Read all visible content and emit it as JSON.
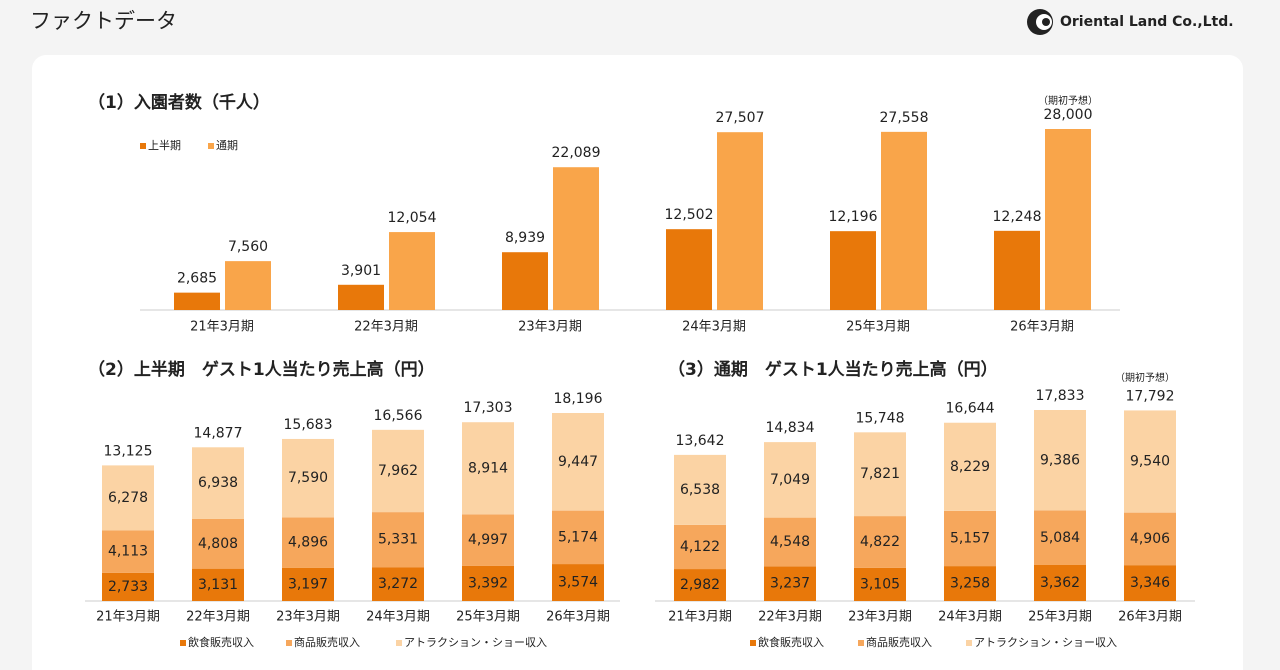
{
  "header": {
    "title": "ファクトデータ",
    "logo": "Oriental Land Co.,Ltd."
  },
  "chart_data": [
    {
      "type": "bar",
      "title": "（1）入園者数（千人）",
      "annotation": "（期初予想）",
      "categories": [
        "21年3月期",
        "22年3月期",
        "23年3月期",
        "24年3月期",
        "25年3月期",
        "26年3月期"
      ],
      "series": [
        {
          "name": "上半期",
          "color": "#e8780a",
          "values": [
            2685,
            3901,
            8939,
            12502,
            12196,
            12248
          ],
          "value_labels": [
            "2,685",
            "3,901",
            "8,939",
            "12,502",
            "12,196",
            "12,248"
          ]
        },
        {
          "name": "通期",
          "color": "#f9a54a",
          "values": [
            7560,
            12054,
            22089,
            27507,
            27558,
            28000
          ],
          "value_labels": [
            "7,560",
            "12,054",
            "22,089",
            "27,507",
            "27,558",
            "28,000"
          ]
        }
      ]
    },
    {
      "type": "stacked_bar",
      "title": "（2）上半期　ゲスト1人当たり売上高（円）",
      "categories": [
        "21年3月期",
        "22年3月期",
        "23年3月期",
        "24年3月期",
        "25年3月期",
        "26年3月期"
      ],
      "series": [
        {
          "name": "飲食販売収入",
          "color": "#e8780a",
          "values": [
            2733,
            3131,
            3197,
            3272,
            3392,
            3574
          ],
          "value_labels": [
            "2,733",
            "3,131",
            "3,197",
            "3,272",
            "3,392",
            "3,574"
          ]
        },
        {
          "name": "商品販売収入",
          "color": "#f6a75c",
          "values": [
            4113,
            4808,
            4896,
            5331,
            4997,
            5174
          ],
          "value_labels": [
            "4,113",
            "4,808",
            "4,896",
            "5,331",
            "4,997",
            "5,174"
          ]
        },
        {
          "name": "アトラクション・ショー収入",
          "color": "#fbd3a4",
          "values": [
            6278,
            6938,
            7590,
            7962,
            8914,
            9447
          ],
          "value_labels": [
            "6,278",
            "6,938",
            "7,590",
            "7,962",
            "8,914",
            "9,447"
          ]
        }
      ],
      "totals": [
        13125,
        14877,
        15683,
        16566,
        17303,
        18196
      ],
      "total_labels": [
        "13,125",
        "14,877",
        "15,683",
        "16,566",
        "17,303",
        "18,196"
      ]
    },
    {
      "type": "stacked_bar",
      "title": "（3）通期　ゲスト1人当たり売上高（円）",
      "annotation": "（期初予想）",
      "categories": [
        "21年3月期",
        "22年3月期",
        "23年3月期",
        "24年3月期",
        "25年3月期",
        "26年3月期"
      ],
      "series": [
        {
          "name": "飲食販売収入",
          "color": "#e8780a",
          "values": [
            2982,
            3237,
            3105,
            3258,
            3362,
            3346
          ],
          "value_labels": [
            "2,982",
            "3,237",
            "3,105",
            "3,258",
            "3,362",
            "3,346"
          ]
        },
        {
          "name": "商品販売収入",
          "color": "#f6a75c",
          "values": [
            4122,
            4548,
            4822,
            5157,
            5084,
            4906
          ],
          "value_labels": [
            "4,122",
            "4,548",
            "4,822",
            "5,157",
            "5,084",
            "4,906"
          ]
        },
        {
          "name": "アトラクション・ショー収入",
          "color": "#fbd3a4",
          "values": [
            6538,
            7049,
            7821,
            8229,
            9386,
            9540
          ],
          "value_labels": [
            "6,538",
            "7,049",
            "7,821",
            "8,229",
            "9,386",
            "9,540"
          ]
        }
      ],
      "totals": [
        13642,
        14834,
        15748,
        16644,
        17833,
        17792
      ],
      "total_labels": [
        "13,642",
        "14,834",
        "15,748",
        "16,644",
        "17,833",
        "17,792"
      ]
    }
  ]
}
